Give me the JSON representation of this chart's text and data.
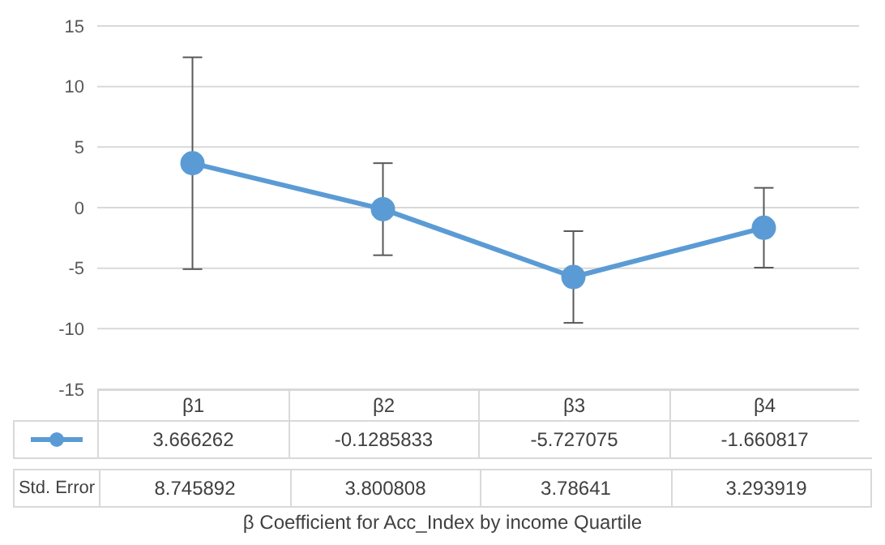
{
  "chart_data": {
    "type": "line",
    "categories": [
      "β1",
      "β2",
      "β3",
      "β4"
    ],
    "series": [
      {
        "color": "#5b9bd5",
        "values": [
          3.666262,
          -0.1285833,
          -5.727075,
          -1.660817
        ],
        "errors": [
          8.745892,
          3.800808,
          3.78641,
          3.293919
        ]
      }
    ],
    "ylim": [
      -15,
      15
    ],
    "yticks": [
      -15,
      -10,
      -5,
      0,
      5,
      10,
      15
    ],
    "grid": "y",
    "marker": "circle",
    "data_labels": true,
    "annotations": [
      "Std. Error",
      "8.745892",
      "3.800808",
      "3.78641",
      "3.293919",
      "β Coefficient for Acc_Index by income Quartile"
    ]
  }
}
